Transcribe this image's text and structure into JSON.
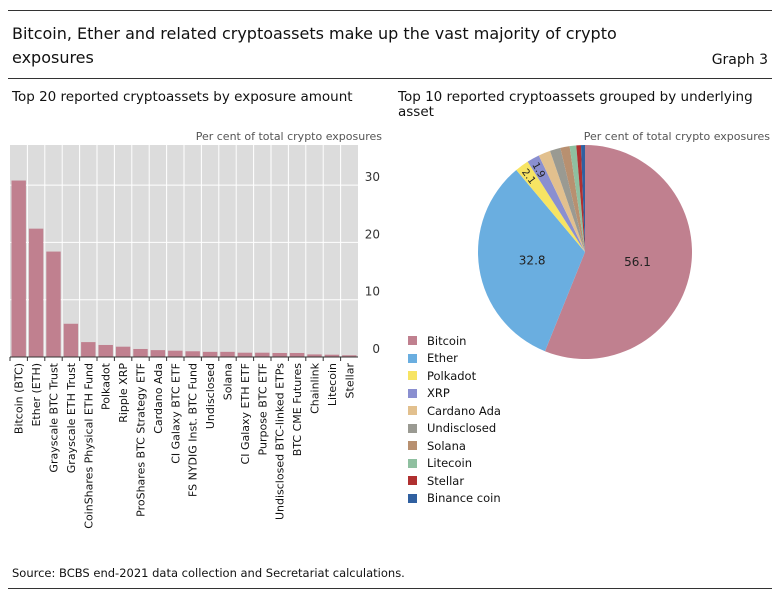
{
  "title": "Bitcoin, Ether and related cryptoassets make up the vast majority of crypto exposures",
  "graph_label": "Graph 3",
  "source": "Source: BCBS end-2021 data collection and Secretariat calculations.",
  "chart_data": [
    {
      "type": "bar",
      "title": "Top 20 reported cryptoassets by exposure amount",
      "ylabel": "Per cent of total crypto exposures",
      "ylim": [
        0,
        37
      ],
      "yticks": [
        0,
        10,
        20,
        30
      ],
      "grid": true,
      "color": "#c0808f",
      "categories": [
        "Bitcoin (BTC)",
        "Ether (ETH)",
        "Grayscale BTC Trust",
        "Grayscale ETH Trust",
        "CoinShares Physical ETH Fund",
        "Polkadot",
        "Ripple XRP",
        "ProShares BTC Strategy ETF",
        "Cardano Ada",
        "CI Galaxy BTC ETF",
        "FS NYDIG Inst. BTC Fund",
        "Undisclosed",
        "Solana",
        "CI Galaxy ETH ETF",
        "Purpose BTC ETF",
        "Undisclosed BTC-linked ETPs",
        "BTC CME Futures",
        "Chainlink",
        "Litecoin",
        "Stellar"
      ],
      "values": [
        30.8,
        22.4,
        18.4,
        5.8,
        2.6,
        2.1,
        1.8,
        1.4,
        1.2,
        1.1,
        1.0,
        0.9,
        0.9,
        0.75,
        0.75,
        0.7,
        0.7,
        0.45,
        0.4,
        0.3
      ]
    },
    {
      "type": "pie",
      "title": "Top 10 reported cryptoassets grouped by underlying asset",
      "ylabel": "Per cent of total crypto exposures",
      "legend": "bottom-left",
      "labels": [
        "Bitcoin",
        "Ether",
        "Polkadot",
        "XRP",
        "Cardano Ada",
        "Undisclosed",
        "Solana",
        "Litecoin",
        "Stellar",
        "Binance coin"
      ],
      "values": [
        56.1,
        32.8,
        2.1,
        1.9,
        1.8,
        1.6,
        1.4,
        1.0,
        0.7,
        0.6
      ],
      "data_labels": [
        "56.1",
        "32.8",
        "2.1",
        "1.9",
        "",
        "",
        "",
        "",
        "",
        ""
      ],
      "colors": [
        "#c0808f",
        "#6aaee0",
        "#f7e463",
        "#8a8fd0",
        "#e2c08e",
        "#9a9a92",
        "#b89070",
        "#8fc0a0",
        "#b03030",
        "#3060a0"
      ]
    }
  ]
}
